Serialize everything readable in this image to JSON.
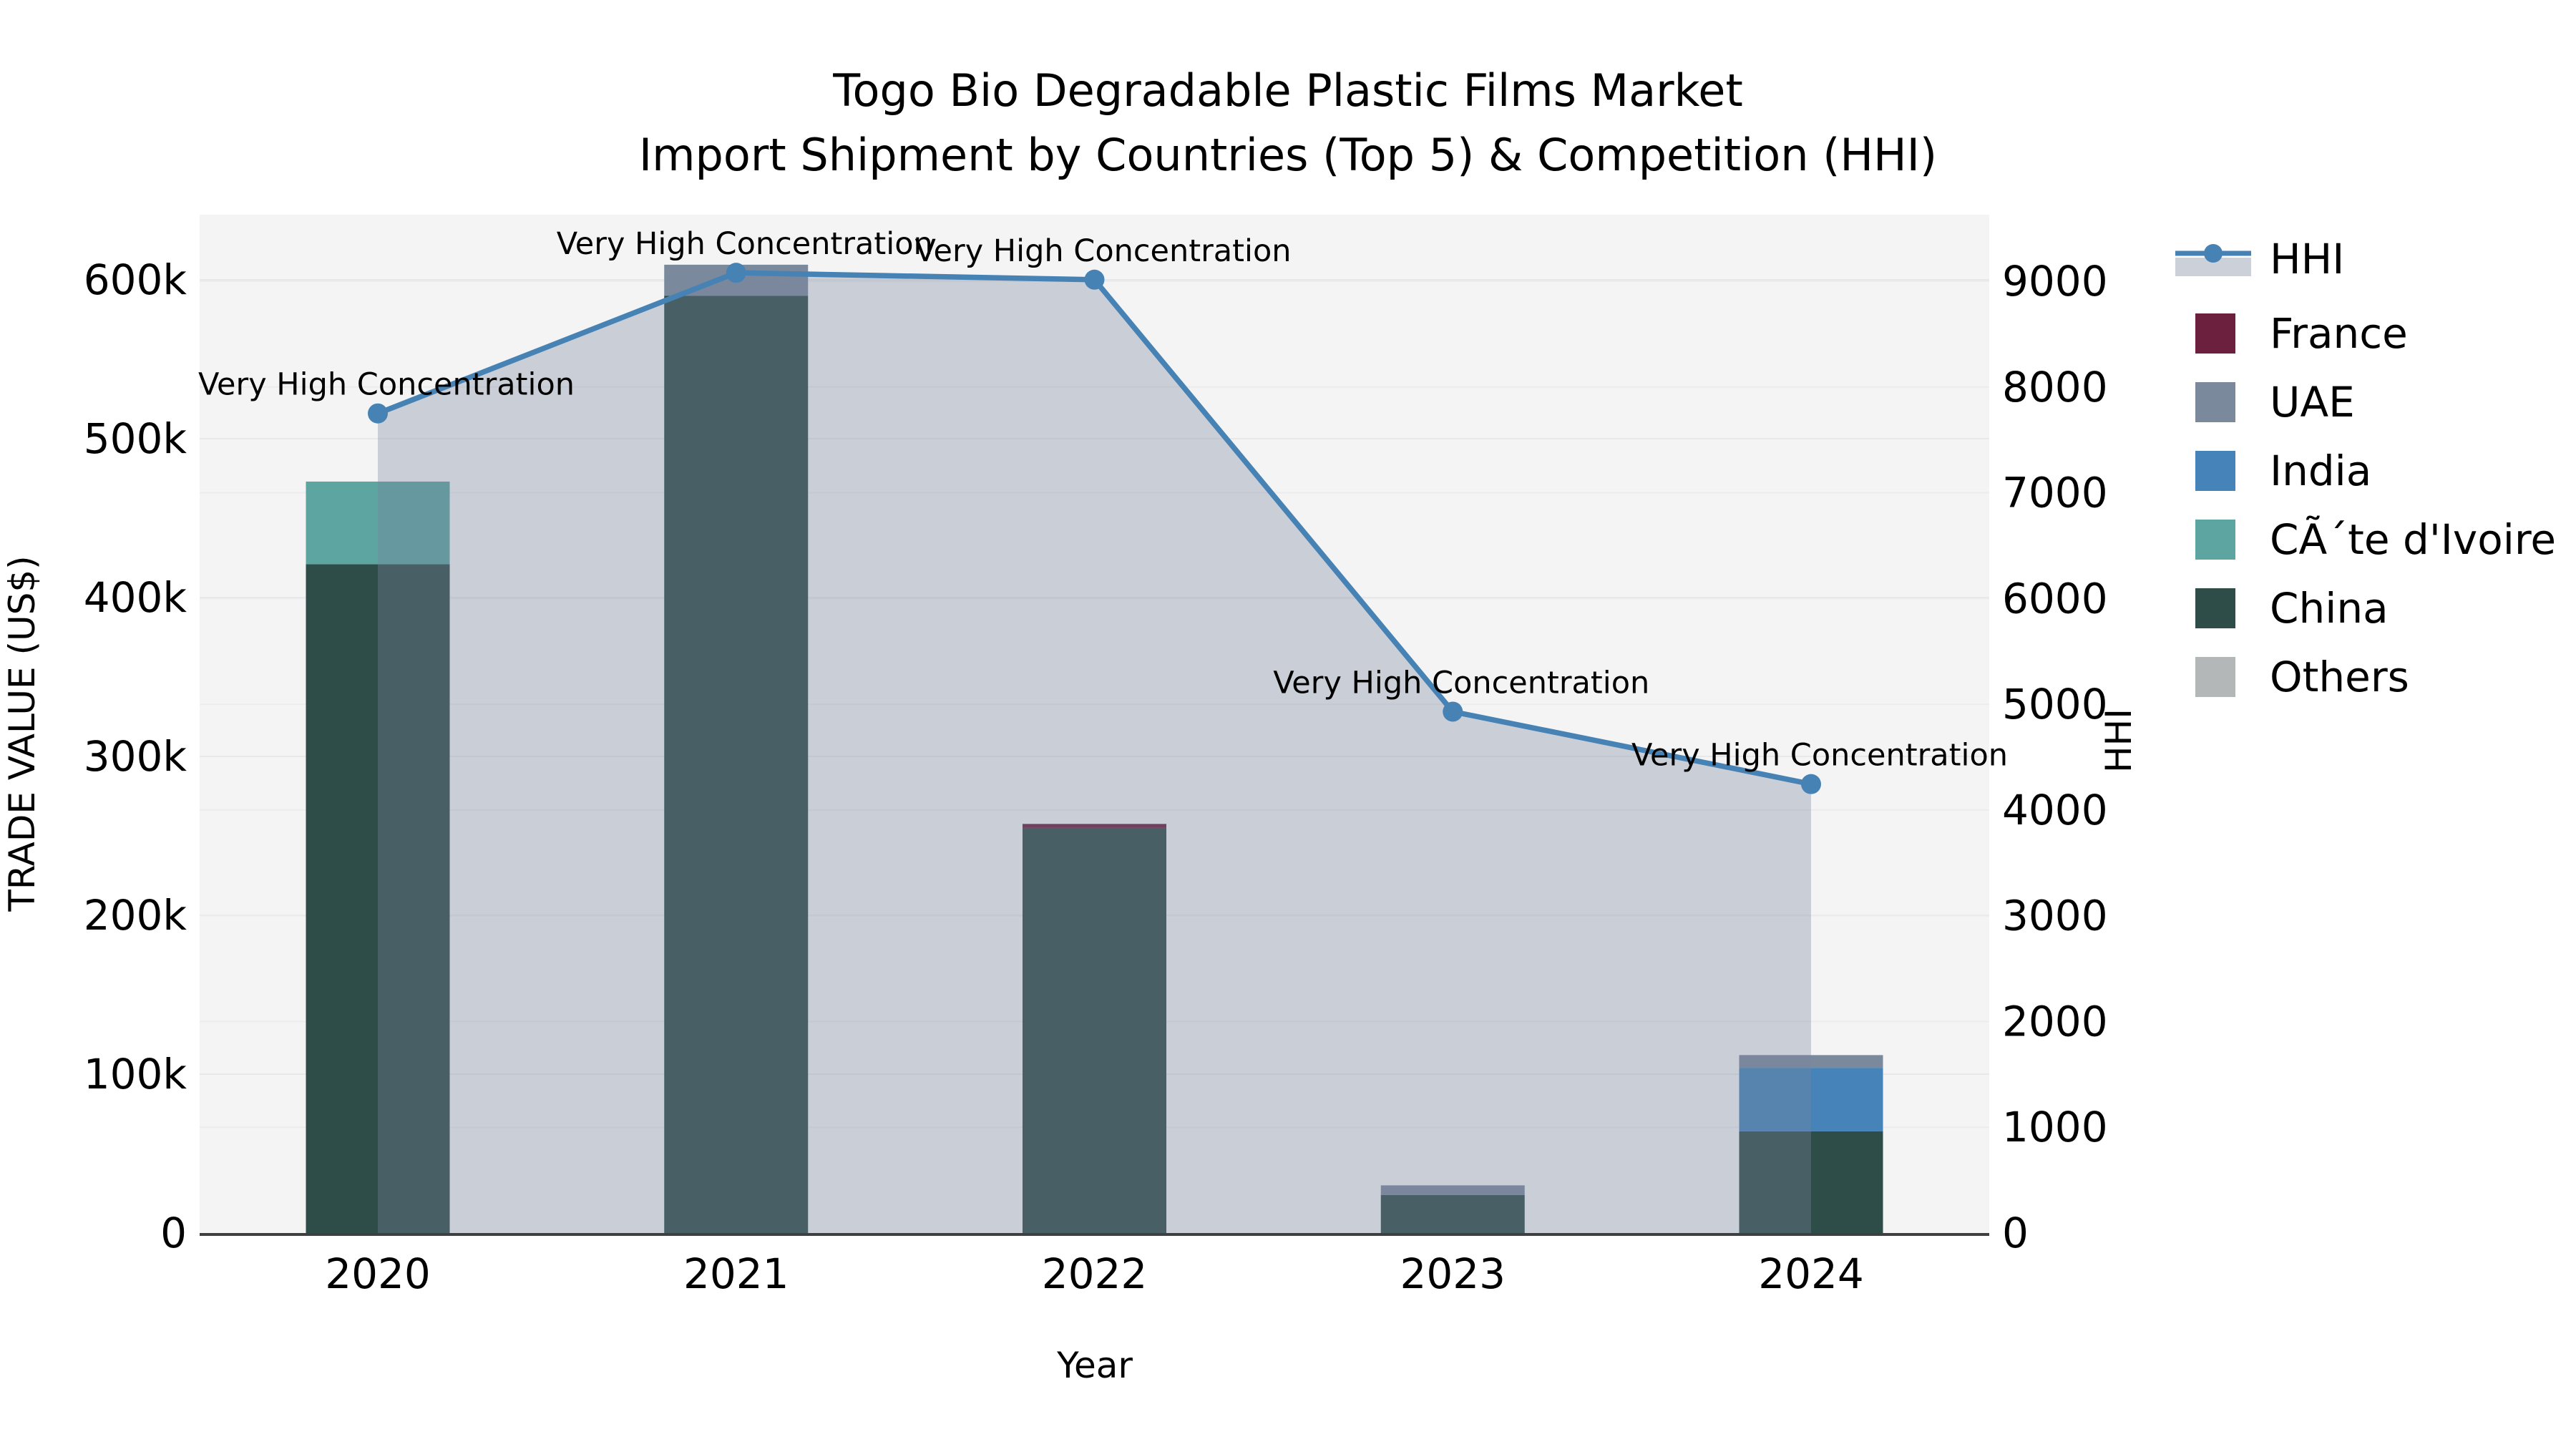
{
  "title": {
    "line1": "Togo Bio Degradable Plastic Films Market",
    "line2": "Import Shipment by Countries (Top 5) & Competition (HHI)"
  },
  "axes": {
    "x_title": "Year",
    "y_left_title": "TRADE VALUE (US$)",
    "y_right_title": "HHI",
    "x_ticks": [
      "2020",
      "2021",
      "2022",
      "2023",
      "2024"
    ],
    "y_left_ticks": [
      "0",
      "100k",
      "200k",
      "300k",
      "400k",
      "500k",
      "600k"
    ],
    "y_right_ticks": [
      "0",
      "1000",
      "2000",
      "3000",
      "4000",
      "5000",
      "6000",
      "7000",
      "8000",
      "9000"
    ]
  },
  "legend": {
    "items": [
      {
        "label": "HHI",
        "type": "line",
        "color": "#4782b4",
        "band_color": "#ccd0d9"
      },
      {
        "label": "France",
        "type": "patch",
        "color": "#6d1f3e"
      },
      {
        "label": "UAE",
        "type": "patch",
        "color": "#7b899c"
      },
      {
        "label": "India",
        "type": "patch",
        "color": "#4683b8"
      },
      {
        "label": "CÃ´te d'Ivoire",
        "type": "patch",
        "color": "#5ca5a0"
      },
      {
        "label": "China",
        "type": "patch",
        "color": "#2f4d48"
      },
      {
        "label": "Others",
        "type": "patch",
        "color": "#b4b7b7"
      }
    ]
  },
  "chart_data": {
    "type": "bar",
    "subtype": "stacked-bars-with-secondary-axis-line",
    "title": "Togo Bio Degradable Plastic Films Market — Import Shipment by Countries (Top 5) & Competition (HHI)",
    "categories": [
      "2020",
      "2021",
      "2022",
      "2023",
      "2024"
    ],
    "bar_value_unit": "US$",
    "series": [
      {
        "name": "China",
        "color": "#2f4d48",
        "values": [
          421000,
          590000,
          255000,
          24000,
          64000
        ]
      },
      {
        "name": "CÃ´te d'Ivoire",
        "color": "#5ca5a0",
        "values": [
          52000,
          0,
          0,
          0,
          0
        ]
      },
      {
        "name": "India",
        "color": "#4683b8",
        "values": [
          0,
          0,
          0,
          0,
          40000
        ]
      },
      {
        "name": "UAE",
        "color": "#7b899c",
        "values": [
          0,
          19500,
          0,
          6000,
          8000
        ]
      },
      {
        "name": "France",
        "color": "#6d1f3e",
        "values": [
          0,
          0,
          2500,
          0,
          0
        ]
      },
      {
        "name": "Others",
        "color": "#b4b7b7",
        "values": [
          0,
          0,
          0,
          0,
          0
        ]
      }
    ],
    "bar_totals": [
      473000,
      609500,
      257500,
      30000,
      112000
    ],
    "line_series": {
      "name": "HHI",
      "color": "#4782b4",
      "area_color": "rgba(120,132,157,0.34)",
      "values": [
        7750,
        9080,
        9015,
        4930,
        4245
      ]
    },
    "point_annotations": [
      "Very High Concentration",
      "Very High Concentration",
      "Very High Concentration",
      "Very High Concentration",
      "Very High Concentration"
    ],
    "xlabel": "Year",
    "ylabel_left": "TRADE VALUE (US$)",
    "ylabel_right": "HHI",
    "ylim_left": [
      0,
      641000
    ],
    "ylim_right": [
      0,
      9630
    ],
    "grid": true,
    "legend_position": "right"
  }
}
